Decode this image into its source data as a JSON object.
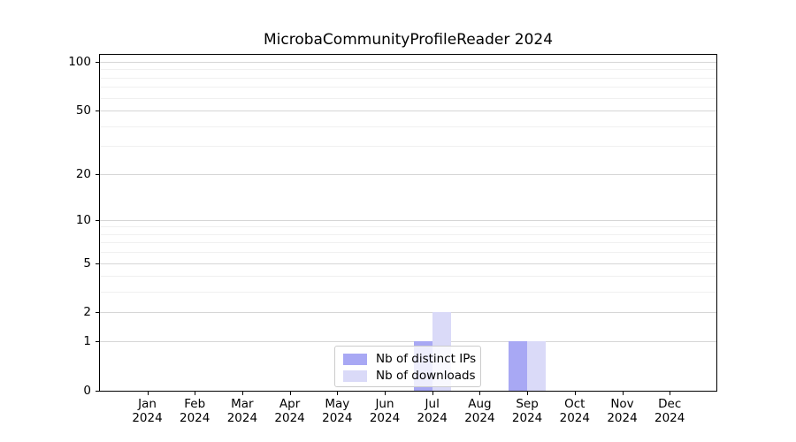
{
  "title": "MicrobaCommunityProfileReader 2024",
  "chart_data": {
    "type": "bar",
    "title": "MicrobaCommunityProfileReader 2024",
    "categories": [
      "Jan",
      "Feb",
      "Mar",
      "Apr",
      "May",
      "Jun",
      "Jul",
      "Aug",
      "Sep",
      "Oct",
      "Nov",
      "Dec"
    ],
    "year_label": "2024",
    "series": [
      {
        "name": "Nb of distinct IPs",
        "color": "#a8a8f4",
        "values": [
          0,
          0,
          0,
          0,
          0,
          0,
          1,
          0,
          1,
          0,
          0,
          0
        ]
      },
      {
        "name": "Nb of downloads",
        "color": "#dadaf8",
        "values": [
          0,
          0,
          0,
          0,
          0,
          0,
          2,
          0,
          1,
          0,
          0,
          0
        ]
      }
    ],
    "yscale": "log1p",
    "ylim": [
      0,
      110
    ],
    "yticks_major": [
      0,
      1,
      2,
      5,
      10,
      20,
      50,
      100
    ],
    "yticks_minor": [
      3,
      4,
      6,
      7,
      8,
      9,
      30,
      40,
      60,
      70,
      80,
      90
    ],
    "grid": "horizontal",
    "legend_position": "lower-center-inside"
  }
}
